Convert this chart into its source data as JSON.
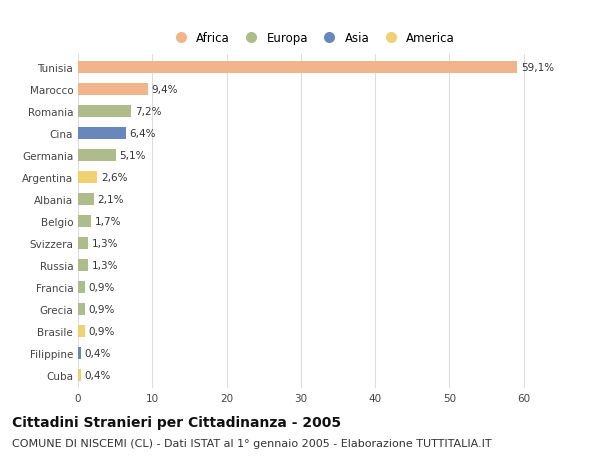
{
  "countries": [
    "Tunisia",
    "Marocco",
    "Romania",
    "Cina",
    "Germania",
    "Argentina",
    "Albania",
    "Belgio",
    "Svizzera",
    "Russia",
    "Francia",
    "Grecia",
    "Brasile",
    "Filippine",
    "Cuba"
  ],
  "values": [
    59.1,
    9.4,
    7.2,
    6.4,
    5.1,
    2.6,
    2.1,
    1.7,
    1.3,
    1.3,
    0.9,
    0.9,
    0.9,
    0.4,
    0.4
  ],
  "labels": [
    "59,1%",
    "9,4%",
    "7,2%",
    "6,4%",
    "5,1%",
    "2,6%",
    "2,1%",
    "1,7%",
    "1,3%",
    "1,3%",
    "0,9%",
    "0,9%",
    "0,9%",
    "0,4%",
    "0,4%"
  ],
  "continents": [
    "Africa",
    "Africa",
    "Europa",
    "Asia",
    "Europa",
    "America",
    "Europa",
    "Europa",
    "Europa",
    "Europa",
    "Europa",
    "Europa",
    "America",
    "Asia",
    "America"
  ],
  "continent_colors": {
    "Africa": "#F2B48A",
    "Europa": "#AEBB8A",
    "Asia": "#6888BB",
    "America": "#F0D070"
  },
  "legend_order": [
    "Africa",
    "Europa",
    "Asia",
    "America"
  ],
  "xlim": [
    0,
    63
  ],
  "xticks": [
    0,
    10,
    20,
    30,
    40,
    50,
    60
  ],
  "title": "Cittadini Stranieri per Cittadinanza - 2005",
  "subtitle": "COMUNE DI NISCEMI (CL) - Dati ISTAT al 1° gennaio 2005 - Elaborazione TUTTITALIA.IT",
  "background_color": "#ffffff",
  "grid_color": "#dddddd",
  "bar_height": 0.55,
  "title_fontsize": 10,
  "subtitle_fontsize": 8,
  "label_fontsize": 7.5,
  "tick_fontsize": 7.5,
  "legend_fontsize": 8.5
}
